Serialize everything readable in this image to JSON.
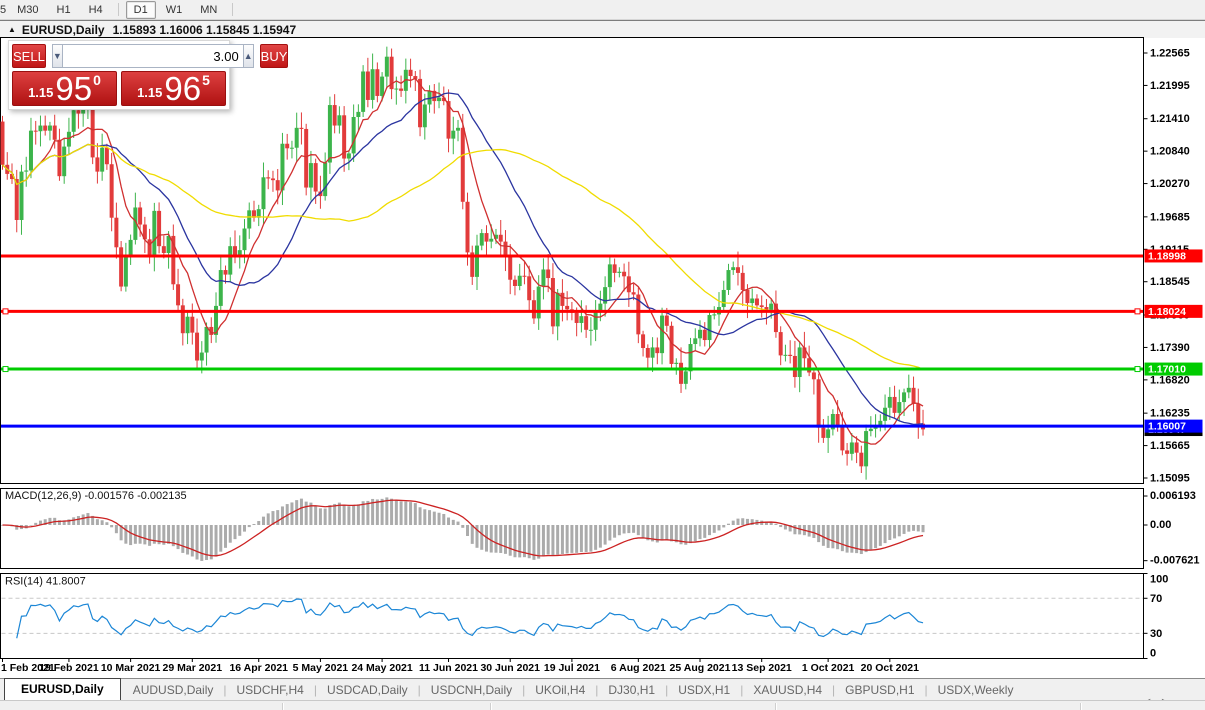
{
  "toolbar": {
    "partial_button": "5",
    "buttons": [
      {
        "label": "M30",
        "active": false
      },
      {
        "label": "H1",
        "active": false
      },
      {
        "label": "H4",
        "active": false
      },
      {
        "sep": true
      },
      {
        "label": "D1",
        "active": true
      },
      {
        "label": "W1",
        "active": false
      },
      {
        "label": "MN",
        "active": false
      },
      {
        "sep": true
      }
    ]
  },
  "chart_header": {
    "collapse_icon": "▲",
    "symbol": "EURUSD,Daily",
    "ohlc": "1.15893 1.16006 1.15845 1.15947"
  },
  "trade_panel": {
    "sell_label": "SELL",
    "buy_label": "BUY",
    "volume": "3.00",
    "spinner_down": "▼",
    "spinner_up": "▲",
    "sell_price": {
      "prefix": "1.15",
      "big": "95",
      "sup": "0"
    },
    "buy_price": {
      "prefix": "1.15",
      "big": "96",
      "sup": "5"
    }
  },
  "chart_data": {
    "type": "candlestick",
    "symbol": "EURUSD",
    "timeframe": "Daily",
    "colors": {
      "up": "#3CB44B",
      "down": "#E23B3B",
      "panel_border": "#000000",
      "axis_text": "#000000"
    },
    "y_axis_ticks": [
      "1.22565",
      "1.21995",
      "1.21410",
      "1.20840",
      "1.20270",
      "1.19685",
      "1.19115",
      "1.18545",
      "1.17960",
      "1.17390",
      "1.16820",
      "1.16235",
      "1.15665",
      "1.15095"
    ],
    "horizontal_lines": [
      {
        "price": 1.18998,
        "label": "1.18998",
        "color": "#FF0000",
        "handles": false
      },
      {
        "price": 1.18024,
        "label": "1.18024",
        "color": "#FF0000",
        "handles": true
      },
      {
        "price": 1.1701,
        "label": "1.17010",
        "color": "#00CC00",
        "handles": true
      },
      {
        "price": 1.16007,
        "label": "1.16007",
        "color": "#0000FF",
        "handles": false
      }
    ],
    "current_price": {
      "price": 1.15947,
      "label": "1.15947",
      "color": "#000000"
    },
    "x_axis": [
      {
        "label": "1 Feb 2021",
        "index": 0
      },
      {
        "label": "19 Feb 2021",
        "index": 14
      },
      {
        "label": "10 Mar 2021",
        "index": 27
      },
      {
        "label": "29 Mar 2021",
        "index": 40
      },
      {
        "label": "16 Apr 2021",
        "index": 54
      },
      {
        "label": "5 May 2021",
        "index": 67
      },
      {
        "label": "24 May 2021",
        "index": 80
      },
      {
        "label": "11 Jun 2021",
        "index": 94
      },
      {
        "label": "30 Jun 2021",
        "index": 107
      },
      {
        "label": "19 Jul 2021",
        "index": 120
      },
      {
        "label": "6 Aug 2021",
        "index": 134
      },
      {
        "label": "25 Aug 2021",
        "index": 147
      },
      {
        "label": "13 Sep 2021",
        "index": 160
      },
      {
        "label": "1 Oct 2021",
        "index": 174
      },
      {
        "label": "20 Oct 2021",
        "index": 187
      }
    ],
    "first_open": 1.2136,
    "closes": [
      1.206,
      1.2044,
      1.2035,
      1.1963,
      1.2048,
      1.205,
      1.212,
      1.2119,
      1.2129,
      1.212,
      1.2129,
      1.2104,
      1.204,
      1.2092,
      1.2118,
      1.2156,
      1.215,
      1.2168,
      1.2175,
      1.2073,
      1.2048,
      1.209,
      1.2061,
      1.1967,
      1.1915,
      1.1846,
      1.19,
      1.1928,
      1.1985,
      1.1955,
      1.1929,
      1.1899,
      1.1979,
      1.1917,
      1.1905,
      1.1935,
      1.185,
      1.1813,
      1.1764,
      1.1793,
      1.1765,
      1.1716,
      1.173,
      1.1775,
      1.1761,
      1.1812,
      1.1875,
      1.1867,
      1.1917,
      1.1899,
      1.191,
      1.1948,
      1.198,
      1.1967,
      1.1982,
      1.2038,
      1.2036,
      1.2033,
      1.2015,
      1.2097,
      1.2089,
      1.209,
      1.2125,
      1.2123,
      1.202,
      1.2063,
      1.2013,
      1.2005,
      1.2064,
      1.2165,
      1.2129,
      1.2147,
      1.2071,
      1.208,
      1.2144,
      1.2153,
      1.2224,
      1.2174,
      1.2228,
      1.2181,
      1.2215,
      1.225,
      1.2193,
      1.2194,
      1.219,
      1.2227,
      1.2216,
      1.2211,
      1.2126,
      1.2166,
      1.219,
      1.2172,
      1.2178,
      1.2172,
      1.2106,
      1.212,
      1.2125,
      1.1995,
      1.1906,
      1.1863,
      1.1918,
      1.194,
      1.1925,
      1.193,
      1.1937,
      1.1925,
      1.1898,
      1.1858,
      1.1847,
      1.1865,
      1.1864,
      1.1822,
      1.179,
      1.1846,
      1.1876,
      1.1861,
      1.1776,
      1.1835,
      1.1812,
      1.1806,
      1.18,
      1.1782,
      1.1794,
      1.177,
      1.177,
      1.1803,
      1.1816,
      1.1845,
      1.1885,
      1.187,
      1.1872,
      1.1864,
      1.1836,
      1.1832,
      1.1762,
      1.1738,
      1.1721,
      1.1739,
      1.1729,
      1.1795,
      1.1777,
      1.171,
      1.1712,
      1.1675,
      1.1697,
      1.1745,
      1.1755,
      1.177,
      1.1752,
      1.1796,
      1.1797,
      1.181,
      1.184,
      1.1875,
      1.188,
      1.187,
      1.184,
      1.1817,
      1.1825,
      1.1813,
      1.181,
      1.1805,
      1.1816,
      1.1766,
      1.1725,
      1.1726,
      1.1724,
      1.1687,
      1.1739,
      1.172,
      1.1695,
      1.1683,
      1.1598,
      1.158,
      1.1595,
      1.1622,
      1.1599,
      1.1558,
      1.1552,
      1.1572,
      1.1554,
      1.153,
      1.1592,
      1.1596,
      1.1601,
      1.161,
      1.1633,
      1.1652,
      1.1624,
      1.1643,
      1.166,
      1.1668,
      1.164,
      1.1605,
      1.1595
    ],
    "moving_averages": [
      {
        "period": 8,
        "color": "#D03030"
      },
      {
        "period": 21,
        "color": "#2B35A0"
      },
      {
        "period": 55,
        "color": "#F0DC00"
      }
    ],
    "macd": {
      "header": "MACD(12,26,9) -0.001576 -0.002135",
      "fast": 12,
      "slow": 26,
      "signal_period": 9,
      "axis_ticks": [
        {
          "text": "0.006193",
          "value": 0.006193
        },
        {
          "text": "0.00",
          "value": 0
        },
        {
          "text": "-0.007621",
          "value": -0.007621
        }
      ],
      "histogram_color": "#ABABAB",
      "signal_color": "#CC2222"
    },
    "rsi": {
      "header": "RSI(14) 41.8007",
      "period": 14,
      "levels": [
        70,
        30
      ],
      "axis_ticks": [
        {
          "text": "100",
          "value": 100
        },
        {
          "text": "70",
          "value": 70
        },
        {
          "text": "30",
          "value": 30
        },
        {
          "text": "0",
          "value": 0
        }
      ],
      "color": "#1B86D6"
    }
  },
  "tabs": {
    "items": [
      {
        "label": "EURUSD,Daily",
        "active": true
      },
      {
        "label": "AUDUSD,Daily",
        "active": false
      },
      {
        "label": "USDCHF,H4",
        "active": false
      },
      {
        "label": "USDCAD,Daily",
        "active": false
      },
      {
        "label": "USDCNH,Daily",
        "active": false
      },
      {
        "label": "UKOil,H4",
        "active": false
      },
      {
        "label": "DJ30,H1",
        "active": false
      },
      {
        "label": "USDX,H1",
        "active": false
      },
      {
        "label": "XAUUSD,H4",
        "active": false
      },
      {
        "label": "GBPUSD,H1",
        "active": false
      },
      {
        "label": "USDX,Weekly",
        "active": false
      }
    ],
    "scroll_left": "◄",
    "scroll_right": "►"
  }
}
